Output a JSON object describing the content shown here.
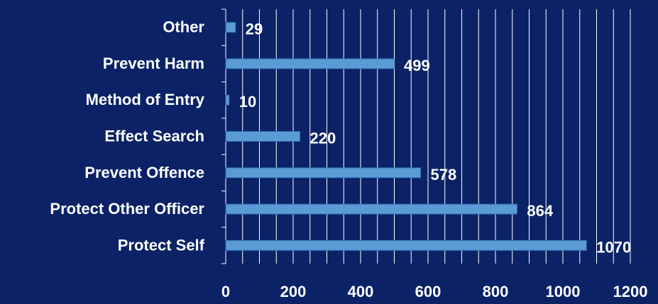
{
  "chart_data": {
    "type": "bar",
    "orientation": "horizontal",
    "title": "",
    "xlabel": "",
    "ylabel": "",
    "categories": [
      "Protect Self",
      "Protect Other Officer",
      "Prevent Offence",
      "Effect Search",
      "Method of Entry",
      "Prevent Harm",
      "Other"
    ],
    "values": [
      1070,
      864,
      578,
      220,
      10,
      499,
      29
    ],
    "data_labels": [
      "1070",
      "864",
      "578",
      "220",
      "10",
      "499",
      "29"
    ],
    "x_ticks": [
      "0",
      "200",
      "400",
      "600",
      "800",
      "1000",
      "1200"
    ],
    "xlim": [
      0,
      1200
    ],
    "grid": "vertical",
    "legend": "none",
    "colors": {
      "background": "#0b2266",
      "bar": "#5b9bd5",
      "bar_border": "#2e6fb5",
      "grid": "#ffffff",
      "text": "#ffffff"
    }
  }
}
